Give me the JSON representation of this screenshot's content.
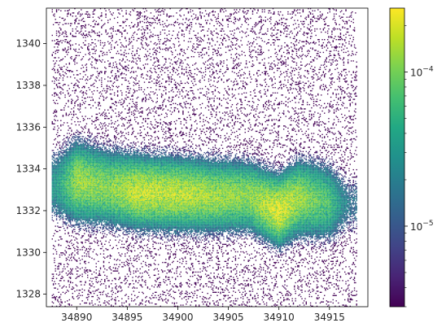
{
  "chart_data": {
    "type": "heatmap",
    "title": "",
    "xlabel": "",
    "ylabel": "",
    "xlim": [
      34887.0,
      34918.8
    ],
    "ylim": [
      1327.4,
      1341.7
    ],
    "x_ticks": [
      34890,
      34895,
      34900,
      34905,
      34910,
      34915
    ],
    "y_ticks": [
      1328,
      1330,
      1332,
      1334,
      1336,
      1338,
      1340
    ],
    "grid": false,
    "colormap": "viridis",
    "color_scale": "log",
    "colorbar": {
      "vmin": 3e-06,
      "vmax": 0.00026,
      "ticks": [
        {
          "value": 1e-05,
          "base": "10",
          "exponent": "−5"
        },
        {
          "value": 0.0001,
          "base": "10",
          "exponent": "−4"
        }
      ]
    },
    "band_ridge": [
      {
        "x": 34888,
        "y_center": 1333.2,
        "y_spread": 0.9,
        "density": 3e-05
      },
      {
        "x": 34890,
        "y_center": 1333.4,
        "y_spread": 0.9,
        "density": 0.00012
      },
      {
        "x": 34893,
        "y_center": 1333.1,
        "y_spread": 0.85,
        "density": 0.0001
      },
      {
        "x": 34896,
        "y_center": 1332.9,
        "y_spread": 0.8,
        "density": 0.00016
      },
      {
        "x": 34900,
        "y_center": 1332.8,
        "y_spread": 0.8,
        "density": 0.00015
      },
      {
        "x": 34904,
        "y_center": 1332.7,
        "y_spread": 0.8,
        "density": 0.00012
      },
      {
        "x": 34907,
        "y_center": 1332.7,
        "y_spread": 0.8,
        "density": 0.0001
      },
      {
        "x": 34910,
        "y_center": 1332.0,
        "y_spread": 0.75,
        "density": 0.0002
      },
      {
        "x": 34912,
        "y_center": 1332.6,
        "y_spread": 0.85,
        "density": 0.00012
      },
      {
        "x": 34915,
        "y_center": 1332.4,
        "y_spread": 0.9,
        "density": 6e-05
      },
      {
        "x": 34917,
        "y_center": 1332.3,
        "y_spread": 0.8,
        "density": 1.5e-05
      }
    ]
  }
}
